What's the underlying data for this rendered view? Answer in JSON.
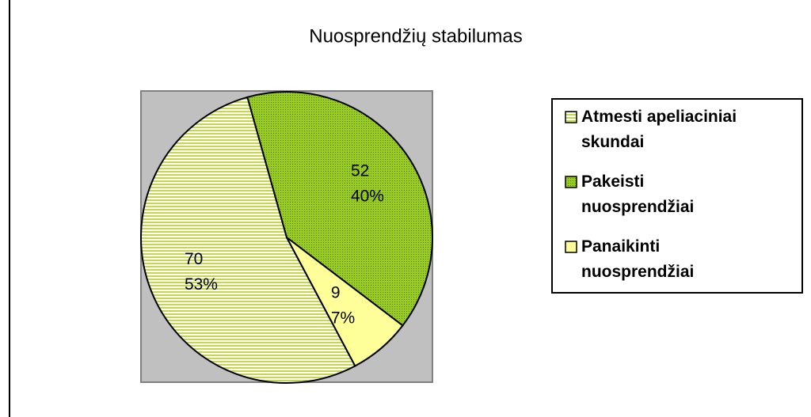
{
  "chart_data": {
    "type": "pie",
    "title": "Nuosprendžių stabilumas",
    "categories": [
      "Atmesti apeliaciniai skundai",
      "Pakeisti nuosprendžiai",
      "Panaikinti nuosprendžiai"
    ],
    "values": [
      70,
      52,
      9
    ],
    "percentages": [
      53,
      40,
      7
    ],
    "value_labels": [
      "53%",
      "40%",
      "7%"
    ],
    "colors": [
      "#d4e46a",
      "#8fbf1f",
      "#ffff99"
    ]
  }
}
